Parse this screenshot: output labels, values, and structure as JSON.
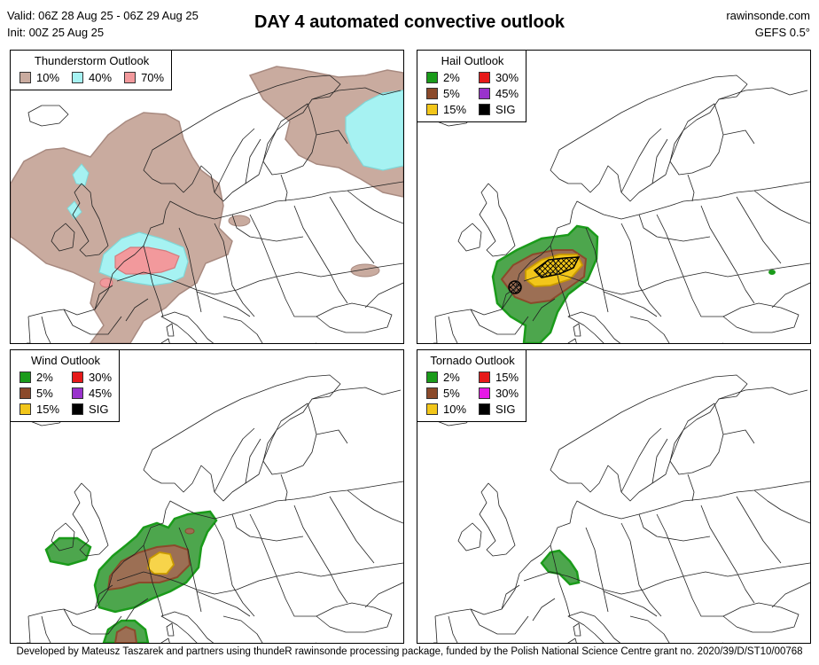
{
  "header": {
    "valid": "Valid: 06Z 28 Aug 25 - 06Z 29 Aug 25",
    "init": "Init: 00Z 25 Aug 25",
    "title": "DAY 4 automated convective outlook",
    "site": "rawinsonde.com",
    "model": "GEFS 0.5°"
  },
  "panels": {
    "thunderstorm": {
      "title": "Thunderstorm Outlook",
      "legend": [
        {
          "label": "10%",
          "color": "#c9ab9f"
        },
        {
          "label": "40%",
          "color": "#a6f2f2"
        },
        {
          "label": "70%",
          "color": "#f2999c"
        }
      ]
    },
    "hail": {
      "title": "Hail Outlook",
      "legend": [
        {
          "label": "2%",
          "color": "#1a9b1a"
        },
        {
          "label": "30%",
          "color": "#e61919"
        },
        {
          "label": "5%",
          "color": "#8b4a2b"
        },
        {
          "label": "45%",
          "color": "#9933cc"
        },
        {
          "label": "15%",
          "color": "#f2c61a"
        },
        {
          "label": "SIG",
          "color": "#000000"
        }
      ]
    },
    "wind": {
      "title": "Wind Outlook",
      "legend": [
        {
          "label": "2%",
          "color": "#1a9b1a"
        },
        {
          "label": "30%",
          "color": "#e61919"
        },
        {
          "label": "5%",
          "color": "#8b4a2b"
        },
        {
          "label": "45%",
          "color": "#9933cc"
        },
        {
          "label": "15%",
          "color": "#f2c61a"
        },
        {
          "label": "SIG",
          "color": "#000000"
        }
      ]
    },
    "tornado": {
      "title": "Tornado Outlook",
      "legend": [
        {
          "label": "2%",
          "color": "#1a9b1a"
        },
        {
          "label": "15%",
          "color": "#e61919"
        },
        {
          "label": "5%",
          "color": "#8b4a2b"
        },
        {
          "label": "30%",
          "color": "#e619e6"
        },
        {
          "label": "10%",
          "color": "#f2c61a"
        },
        {
          "label": "SIG",
          "color": "#000000"
        }
      ]
    }
  },
  "footer": "Developed by Mateusz Taszarek and partners using thundeR rawinsonde processing package, funded by the Polish National Science Centre grant no. 2020/39/D/ST10/00768"
}
